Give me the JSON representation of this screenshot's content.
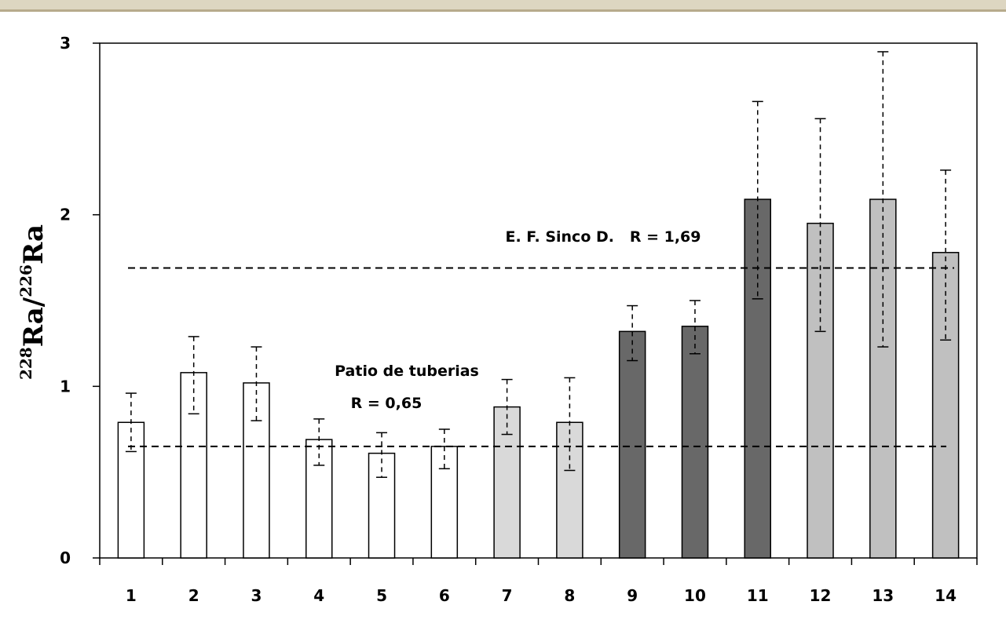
{
  "chart_data": {
    "type": "bar",
    "title": "",
    "xlabel": "",
    "ylabel": {
      "sup1": "228",
      "main1": "Ra/",
      "sup2": "226",
      "main2": "Ra"
    },
    "ylim": [
      0,
      3
    ],
    "yticks": [
      "0",
      "1",
      "2",
      "3"
    ],
    "categories": [
      "1",
      "2",
      "3",
      "4",
      "5",
      "6",
      "7",
      "8",
      "9",
      "10",
      "11",
      "12",
      "13",
      "14"
    ],
    "values": [
      0.79,
      1.08,
      1.02,
      0.69,
      0.61,
      0.65,
      0.88,
      0.79,
      1.32,
      1.35,
      2.09,
      1.95,
      2.09,
      1.78
    ],
    "err_low": [
      0.62,
      0.84,
      0.8,
      0.54,
      0.47,
      0.52,
      0.72,
      0.51,
      1.15,
      1.19,
      1.51,
      1.32,
      1.23,
      1.27
    ],
    "err_high": [
      0.96,
      1.29,
      1.23,
      0.81,
      0.73,
      0.75,
      1.04,
      1.05,
      1.47,
      1.5,
      2.66,
      2.56,
      2.95,
      2.26
    ],
    "fill_colors": [
      "#ffffff",
      "#ffffff",
      "#ffffff",
      "#ffffff",
      "#ffffff",
      "#ffffff",
      "#d9d9d9",
      "#d9d9d9",
      "#686868",
      "#686868",
      "#686868",
      "#c0c0c0",
      "#c0c0c0",
      "#c0c0c0"
    ],
    "grid": false,
    "reference_lines": [
      {
        "value": 1.69,
        "label": "E. F. Sinco D.   R = 1,69"
      },
      {
        "value": 0.65,
        "label_line1": "Patio de tuberias",
        "label_line2": "R = 0,65"
      }
    ]
  }
}
